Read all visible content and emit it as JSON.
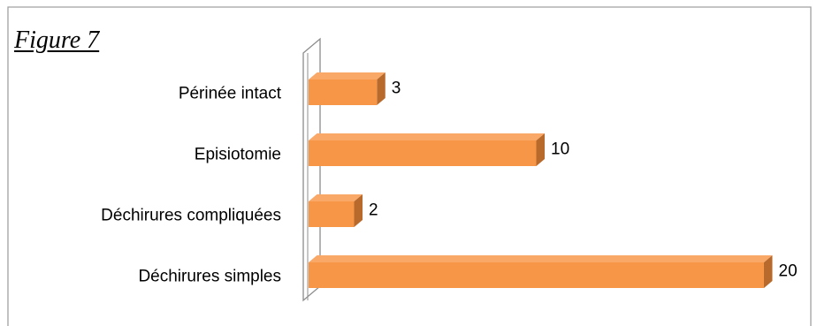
{
  "figure_label": "Figure 7",
  "chart_data": {
    "type": "bar",
    "orientation": "horizontal",
    "style": "3d",
    "categories": [
      "Périnée intact",
      "Episiotomie",
      "Déchirures compliquées",
      "Déchirures simples"
    ],
    "values": [
      3,
      10,
      2,
      20
    ],
    "data_labels": [
      "3",
      "10",
      "2",
      "20"
    ],
    "title": "",
    "xlabel": "",
    "ylabel": "",
    "xlim": [
      0,
      20
    ],
    "grid": false,
    "legend": "none",
    "colors": {
      "bar_front": "#F79646",
      "bar_top": "#F9A868",
      "bar_side": "#B86A2C",
      "axis_wall": "#8c8c8c",
      "frame": "#a0a0a0"
    }
  }
}
